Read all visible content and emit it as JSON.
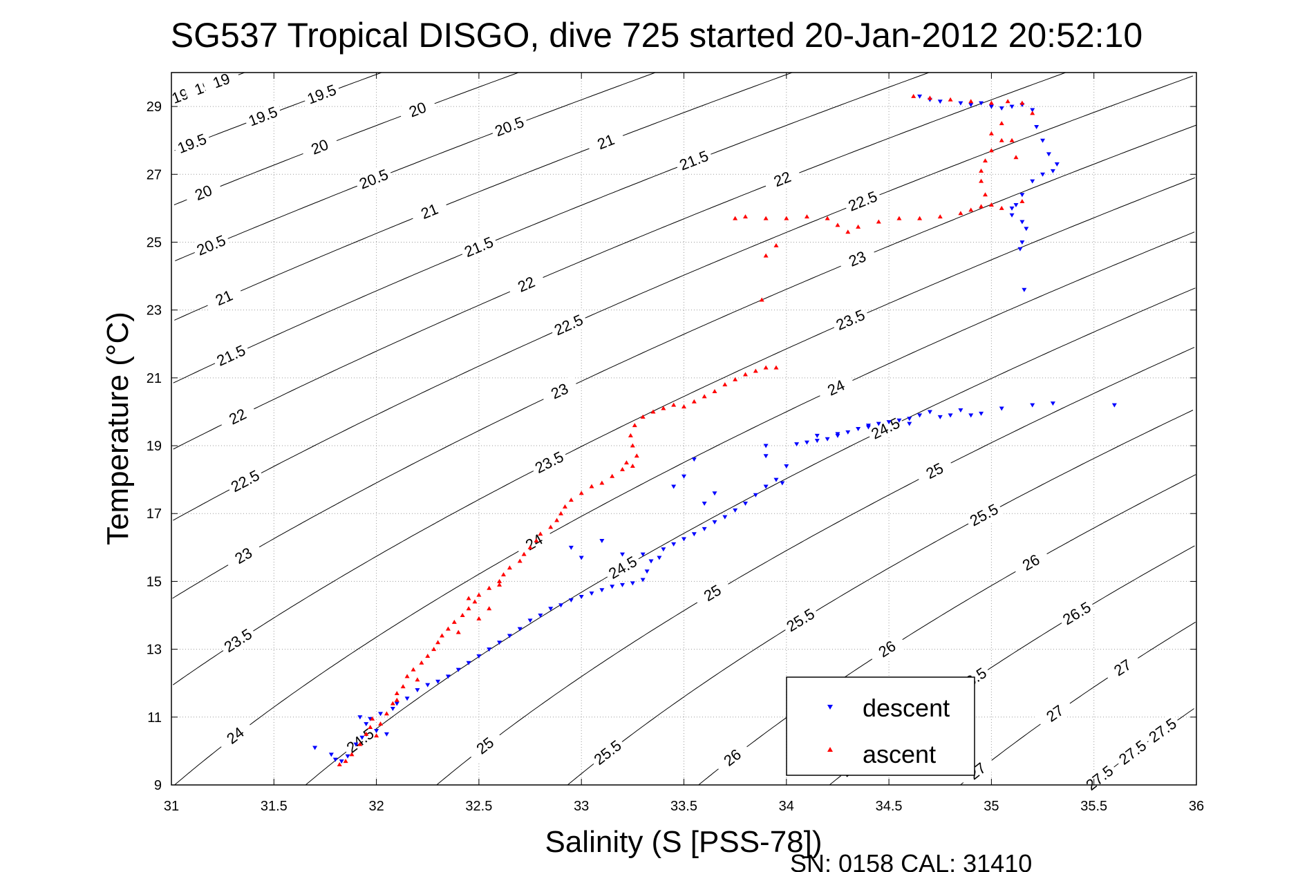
{
  "chart_data": {
    "type": "scatter",
    "title": "SG537 Tropical DISGO, dive 725 started 20-Jan-2012 20:52:10",
    "xlabel": "Salinity (S [PSS-78])",
    "ylabel": "Temperature (°C)",
    "xlim": [
      31,
      36
    ],
    "ylim": [
      9,
      30
    ],
    "x_ticks": [
      31,
      31.5,
      32,
      32.5,
      33,
      33.5,
      34,
      34.5,
      35,
      35.5,
      36
    ],
    "x_tick_labels": [
      "31",
      "31.5",
      "32",
      "32.5",
      "33",
      "33.5",
      "34",
      "34.5",
      "35",
      "35.5",
      "36"
    ],
    "y_ticks": [
      9,
      11,
      13,
      15,
      17,
      19,
      21,
      23,
      25,
      27,
      29
    ],
    "y_tick_labels": [
      "9",
      "11",
      "13",
      "15",
      "17",
      "19",
      "21",
      "23",
      "25",
      "27",
      "29"
    ],
    "grid": true,
    "legend_position": "bottom-right",
    "footer": "SN: 0158  CAL: 31410",
    "contour_levels": [
      19,
      19.5,
      20,
      20.5,
      21,
      21.5,
      22,
      22.5,
      23,
      23.5,
      24,
      24.5,
      25,
      25.5,
      26,
      26.5,
      27,
      27.5
    ],
    "contour_level_labels": [
      "19",
      "19.5",
      "20",
      "20.5",
      "21",
      "21.5",
      "22",
      "22.5",
      "23",
      "23.5",
      "24",
      "24.5",
      "25",
      "25.5",
      "26",
      "26.5",
      "27",
      "27.5"
    ],
    "series": [
      {
        "name": "descent",
        "color": "#0000ff",
        "marker": "triangle-down",
        "points": [
          [
            31.7,
            10.1
          ],
          [
            31.78,
            9.9
          ],
          [
            31.8,
            9.75
          ],
          [
            31.83,
            9.7
          ],
          [
            31.86,
            9.85
          ],
          [
            31.9,
            10.2
          ],
          [
            31.93,
            10.4
          ],
          [
            31.95,
            10.8
          ],
          [
            31.92,
            11.0
          ],
          [
            31.97,
            10.95
          ],
          [
            32.0,
            10.6
          ],
          [
            32.05,
            10.5
          ],
          [
            32.02,
            11.1
          ],
          [
            32.08,
            11.25
          ],
          [
            32.1,
            11.4
          ],
          [
            32.15,
            11.55
          ],
          [
            32.2,
            11.8
          ],
          [
            32.25,
            11.95
          ],
          [
            32.3,
            12.05
          ],
          [
            32.35,
            12.2
          ],
          [
            32.4,
            12.4
          ],
          [
            32.45,
            12.6
          ],
          [
            32.5,
            12.8
          ],
          [
            32.55,
            13.0
          ],
          [
            32.6,
            13.2
          ],
          [
            32.65,
            13.4
          ],
          [
            32.7,
            13.6
          ],
          [
            32.75,
            13.85
          ],
          [
            32.8,
            14.0
          ],
          [
            32.85,
            14.2
          ],
          [
            32.9,
            14.3
          ],
          [
            32.95,
            14.45
          ],
          [
            33.0,
            14.55
          ],
          [
            33.05,
            14.65
          ],
          [
            33.1,
            14.75
          ],
          [
            33.15,
            14.85
          ],
          [
            33.2,
            14.9
          ],
          [
            33.25,
            14.95
          ],
          [
            33.3,
            15.05
          ],
          [
            33.32,
            15.3
          ],
          [
            33.34,
            15.6
          ],
          [
            33.3,
            15.8
          ],
          [
            33.38,
            15.7
          ],
          [
            33.4,
            15.95
          ],
          [
            33.45,
            16.1
          ],
          [
            33.5,
            16.25
          ],
          [
            33.55,
            16.4
          ],
          [
            33.6,
            16.55
          ],
          [
            33.65,
            16.75
          ],
          [
            33.7,
            16.9
          ],
          [
            33.75,
            17.1
          ],
          [
            33.8,
            17.3
          ],
          [
            33.85,
            17.55
          ],
          [
            33.9,
            17.8
          ],
          [
            33.95,
            18.0
          ],
          [
            33.98,
            17.9
          ],
          [
            33.45,
            17.8
          ],
          [
            33.5,
            18.1
          ],
          [
            33.55,
            18.6
          ],
          [
            33.6,
            17.3
          ],
          [
            33.65,
            17.6
          ],
          [
            33.2,
            15.8
          ],
          [
            33.1,
            16.2
          ],
          [
            33.0,
            15.7
          ],
          [
            32.95,
            16.0
          ],
          [
            33.9,
            18.7
          ],
          [
            34.0,
            18.4
          ],
          [
            33.9,
            19.0
          ],
          [
            34.05,
            19.05
          ],
          [
            34.1,
            19.1
          ],
          [
            34.15,
            19.15
          ],
          [
            34.2,
            19.2
          ],
          [
            34.25,
            19.3
          ],
          [
            34.3,
            19.4
          ],
          [
            34.35,
            19.5
          ],
          [
            34.4,
            19.6
          ],
          [
            34.45,
            19.65
          ],
          [
            34.5,
            19.7
          ],
          [
            34.55,
            19.75
          ],
          [
            34.6,
            19.8
          ],
          [
            34.65,
            19.9
          ],
          [
            34.7,
            20.0
          ],
          [
            34.75,
            19.85
          ],
          [
            34.8,
            19.9
          ],
          [
            34.85,
            20.05
          ],
          [
            34.9,
            19.9
          ],
          [
            34.95,
            19.95
          ],
          [
            35.05,
            20.1
          ],
          [
            35.2,
            20.2
          ],
          [
            35.3,
            20.25
          ],
          [
            35.6,
            20.2
          ],
          [
            34.6,
            19.65
          ],
          [
            34.4,
            19.55
          ],
          [
            34.25,
            19.35
          ],
          [
            34.15,
            19.3
          ],
          [
            34.65,
            29.3
          ],
          [
            34.7,
            29.2
          ],
          [
            34.75,
            29.15
          ],
          [
            34.85,
            29.1
          ],
          [
            34.9,
            29.05
          ],
          [
            34.95,
            29.1
          ],
          [
            35.0,
            29.0
          ],
          [
            35.05,
            28.95
          ],
          [
            35.1,
            29.0
          ],
          [
            35.15,
            29.05
          ],
          [
            35.2,
            28.9
          ],
          [
            35.22,
            28.4
          ],
          [
            35.25,
            28.0
          ],
          [
            35.28,
            27.6
          ],
          [
            35.32,
            27.3
          ],
          [
            35.3,
            27.1
          ],
          [
            35.25,
            27.0
          ],
          [
            35.2,
            26.8
          ],
          [
            35.15,
            26.4
          ],
          [
            35.12,
            26.1
          ],
          [
            35.1,
            25.8
          ],
          [
            35.15,
            25.6
          ],
          [
            35.17,
            25.4
          ],
          [
            35.15,
            25.0
          ],
          [
            35.14,
            24.8
          ],
          [
            35.16,
            23.6
          ],
          [
            35.1,
            26.0
          ]
        ]
      },
      {
        "name": "ascent",
        "color": "#ff0000",
        "marker": "triangle-up",
        "points": [
          [
            31.82,
            9.6
          ],
          [
            31.85,
            9.7
          ],
          [
            31.88,
            9.9
          ],
          [
            31.92,
            10.2
          ],
          [
            31.95,
            10.5
          ],
          [
            31.97,
            10.7
          ],
          [
            32.0,
            10.45
          ],
          [
            32.02,
            10.8
          ],
          [
            32.05,
            11.1
          ],
          [
            32.08,
            11.4
          ],
          [
            32.1,
            11.7
          ],
          [
            32.13,
            11.9
          ],
          [
            32.15,
            12.2
          ],
          [
            32.18,
            12.4
          ],
          [
            32.22,
            12.6
          ],
          [
            32.25,
            12.8
          ],
          [
            32.28,
            13.0
          ],
          [
            32.3,
            13.2
          ],
          [
            32.32,
            13.4
          ],
          [
            32.35,
            13.6
          ],
          [
            32.38,
            13.8
          ],
          [
            32.42,
            14.0
          ],
          [
            32.45,
            14.2
          ],
          [
            32.48,
            14.4
          ],
          [
            32.5,
            14.6
          ],
          [
            32.55,
            14.8
          ],
          [
            32.6,
            15.0
          ],
          [
            32.62,
            15.2
          ],
          [
            32.65,
            15.4
          ],
          [
            32.7,
            15.6
          ],
          [
            32.72,
            15.8
          ],
          [
            32.75,
            16.0
          ],
          [
            32.78,
            16.2
          ],
          [
            32.8,
            16.4
          ],
          [
            32.85,
            16.6
          ],
          [
            32.88,
            16.8
          ],
          [
            32.9,
            17.0
          ],
          [
            32.92,
            17.2
          ],
          [
            32.95,
            17.4
          ],
          [
            33.0,
            17.6
          ],
          [
            33.05,
            17.8
          ],
          [
            33.1,
            17.9
          ],
          [
            33.15,
            18.1
          ],
          [
            33.2,
            18.3
          ],
          [
            33.22,
            18.5
          ],
          [
            33.25,
            18.4
          ],
          [
            33.27,
            18.7
          ],
          [
            33.25,
            19.0
          ],
          [
            33.24,
            19.3
          ],
          [
            33.26,
            19.6
          ],
          [
            33.3,
            19.85
          ],
          [
            33.35,
            20.0
          ],
          [
            33.4,
            20.1
          ],
          [
            33.45,
            20.2
          ],
          [
            33.5,
            20.15
          ],
          [
            33.55,
            20.3
          ],
          [
            33.6,
            20.45
          ],
          [
            33.65,
            20.6
          ],
          [
            33.7,
            20.8
          ],
          [
            33.75,
            20.95
          ],
          [
            33.8,
            21.1
          ],
          [
            33.85,
            21.2
          ],
          [
            33.9,
            21.3
          ],
          [
            33.95,
            21.3
          ],
          [
            33.88,
            23.3
          ],
          [
            33.9,
            24.6
          ],
          [
            33.95,
            24.9
          ],
          [
            33.75,
            25.7
          ],
          [
            33.8,
            25.75
          ],
          [
            33.9,
            25.7
          ],
          [
            34.0,
            25.7
          ],
          [
            34.1,
            25.75
          ],
          [
            34.2,
            25.7
          ],
          [
            34.25,
            25.5
          ],
          [
            34.3,
            25.3
          ],
          [
            34.35,
            25.45
          ],
          [
            34.45,
            25.6
          ],
          [
            34.55,
            25.7
          ],
          [
            34.65,
            25.7
          ],
          [
            34.75,
            25.75
          ],
          [
            34.85,
            25.85
          ],
          [
            34.9,
            25.95
          ],
          [
            34.95,
            26.05
          ],
          [
            35.0,
            26.1
          ],
          [
            35.05,
            26.0
          ],
          [
            34.97,
            26.4
          ],
          [
            34.95,
            26.8
          ],
          [
            34.95,
            27.1
          ],
          [
            34.97,
            27.4
          ],
          [
            35.0,
            27.7
          ],
          [
            35.05,
            28.0
          ],
          [
            35.0,
            28.2
          ],
          [
            35.05,
            28.5
          ],
          [
            35.1,
            28.0
          ],
          [
            35.12,
            27.5
          ],
          [
            35.15,
            26.2
          ],
          [
            35.2,
            28.8
          ],
          [
            35.15,
            29.1
          ],
          [
            35.08,
            29.15
          ],
          [
            35.0,
            29.1
          ],
          [
            34.9,
            29.15
          ],
          [
            34.8,
            29.2
          ],
          [
            34.7,
            29.25
          ],
          [
            34.62,
            29.3
          ],
          [
            32.45,
            14.5
          ],
          [
            32.55,
            14.2
          ],
          [
            32.6,
            14.9
          ],
          [
            32.5,
            13.9
          ],
          [
            32.4,
            13.5
          ],
          [
            32.2,
            12.1
          ],
          [
            32.1,
            11.5
          ],
          [
            31.98,
            10.95
          ]
        ]
      }
    ]
  }
}
